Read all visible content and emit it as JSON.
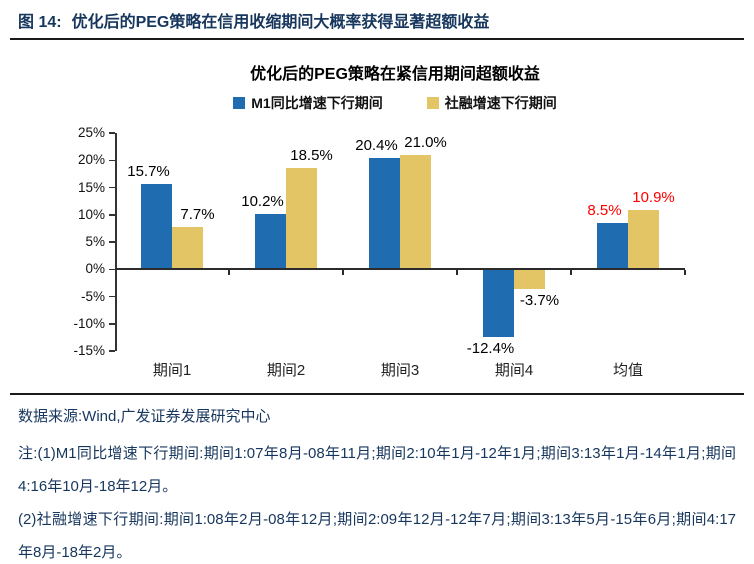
{
  "figure": {
    "label": "图 14:",
    "title": "优化后的PEG策略在信用收缩期间大概率获得显著超额收益"
  },
  "chart_data": {
    "type": "bar",
    "title": "优化后的PEG策略在紧信用期间超额收益",
    "categories": [
      "期间1",
      "期间2",
      "期间3",
      "期间4",
      "均值"
    ],
    "series": [
      {
        "name": "M1同比增速下行期间",
        "color": "#1F6CB0",
        "values": [
          15.7,
          10.2,
          20.4,
          -12.4,
          8.5
        ]
      },
      {
        "name": "社融增速下行期间",
        "color": "#E3C566",
        "values": [
          7.7,
          18.5,
          21.0,
          -3.7,
          10.9
        ]
      }
    ],
    "value_suffix": "%",
    "ylim": [
      -15,
      25
    ],
    "yticks": [
      25,
      20,
      15,
      10,
      5,
      0,
      -5,
      -10,
      -15
    ],
    "ytick_suffix": "%",
    "legend_position": "top",
    "grid": false,
    "highlight_category_index": 4,
    "value_label_color": "#000000",
    "highlight_value_label_color": "#FF0000"
  },
  "footer": {
    "source": "数据来源:Wind,广发证券发展研究中心",
    "notes": [
      "注:(1)M1同比增速下行期间:期间1:07年8月-08年11月;期间2:10年1月-12年1月;期间3:13年1月-14年1月;期间4:16年10月-18年12月。",
      "(2)社融增速下行期间:期间1:08年2月-08年12月;期间2:09年12月-12年7月;期间3:13年5月-15年6月;期间4:17年8月-18年2月。"
    ]
  },
  "colors": {
    "accent_navy": "#17365D",
    "axis": "#2b2b2b",
    "bar_blue": "#1F6CB0",
    "bar_yellow": "#E3C566",
    "highlight_red": "#FF0000"
  }
}
